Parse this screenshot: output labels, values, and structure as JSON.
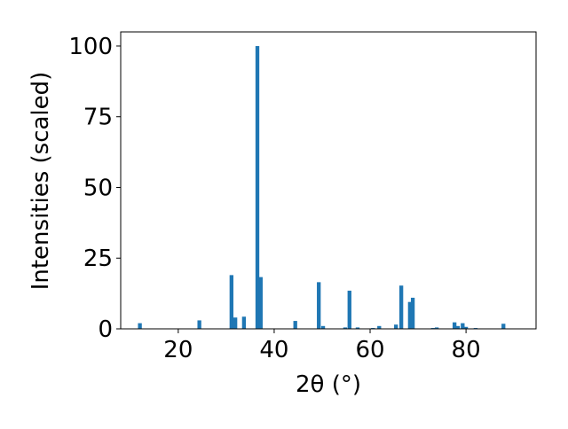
{
  "chart_data": {
    "type": "bar",
    "xlabel": "2θ (°)",
    "ylabel": "Intensities (scaled)",
    "x": [
      12.0,
      24.4,
      31.1,
      31.9,
      33.7,
      36.5,
      37.2,
      44.4,
      49.3,
      50.2,
      54.8,
      55.7,
      57.4,
      60.6,
      61.9,
      65.4,
      66.5,
      68.3,
      68.9,
      73.1,
      73.9,
      77.6,
      78.3,
      79.3,
      80.0,
      82.0,
      87.8
    ],
    "values": [
      2,
      3,
      19,
      4,
      4.3,
      100,
      18.3,
      2.8,
      16.5,
      1,
      0.5,
      13.5,
      0.5,
      0.3,
      1,
      1.5,
      15.3,
      9.5,
      11,
      0.3,
      0.5,
      2.3,
      1,
      2,
      0.7,
      0.3,
      1.8
    ],
    "color": "#1f77b4",
    "bar_width": 0.8,
    "xlim": [
      8,
      94.6
    ],
    "ylim": [
      0,
      105
    ],
    "xticks": [
      20,
      40,
      60,
      80
    ],
    "yticks": [
      0,
      25,
      50,
      75,
      100
    ],
    "grid": false
  }
}
